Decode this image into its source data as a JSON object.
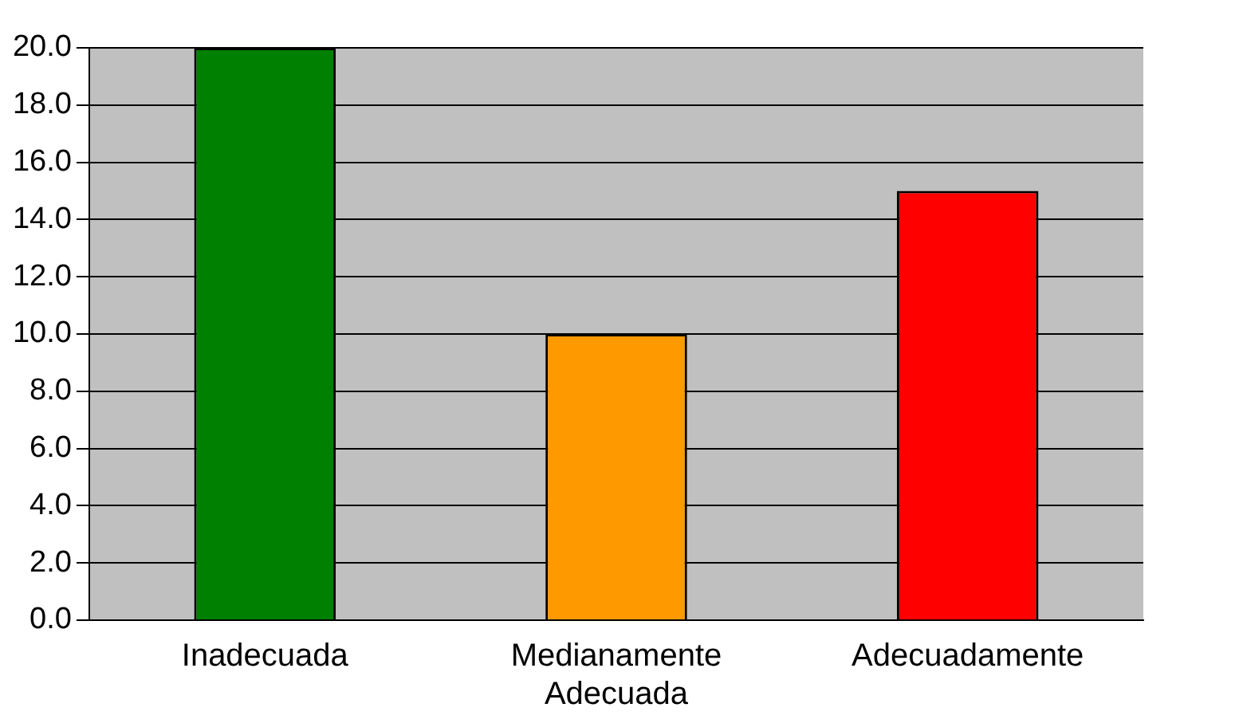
{
  "chart_data": {
    "type": "bar",
    "categories": [
      "Inadecuada",
      "Medianamente Adecuada",
      "Adecuadamente"
    ],
    "values": [
      20,
      10,
      15
    ],
    "colors": [
      "#008000",
      "#ff9900",
      "#ff0000"
    ],
    "ylim": [
      0,
      20
    ],
    "yticks": [
      {
        "value": 0,
        "label": "0.0"
      },
      {
        "value": 2,
        "label": "2.0"
      },
      {
        "value": 4,
        "label": "4.0"
      },
      {
        "value": 6,
        "label": "6.0"
      },
      {
        "value": 8,
        "label": "8.0"
      },
      {
        "value": 10,
        "label": "10.0"
      },
      {
        "value": 12,
        "label": "12.0"
      },
      {
        "value": 14,
        "label": "14.0"
      },
      {
        "value": 16,
        "label": "16.0"
      },
      {
        "value": 18,
        "label": "18.0"
      },
      {
        "value": 20,
        "label": "20.0"
      }
    ],
    "grid": "y",
    "legend": false
  }
}
